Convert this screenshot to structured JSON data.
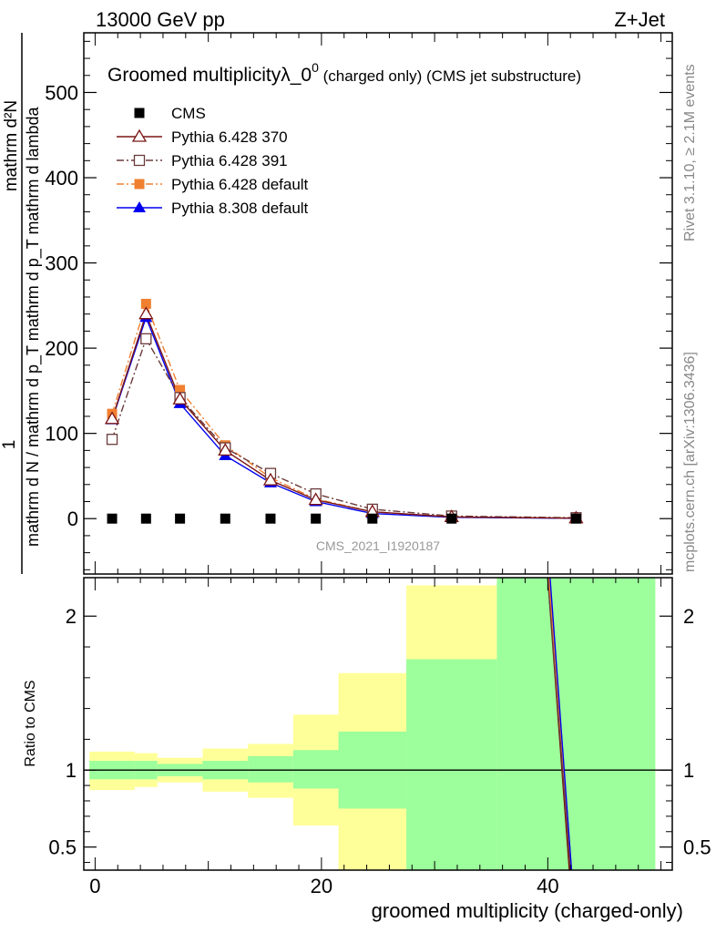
{
  "header": {
    "energy": "13000 GeV pp",
    "process": "Z+Jet"
  },
  "side_labels": {
    "rivet": "Rivet 3.1.10, ≥ 2.1M events",
    "mcplots": "mcplots.cern.ch [arXiv:1306.3436]"
  },
  "chart_data": [
    {
      "type": "line",
      "title_main": "Groomed multiplicityλ_0",
      "title_sup": "0",
      "title_suffix": " (charged only) (CMS jet substructure)",
      "ylabel_numerator": "mathrm d²N",
      "ylabel_denominator": "mathrm d N / mathrm d p_T mathrm d p_T mathrm d lambda",
      "ylabel_one": "1",
      "ylim": [
        -65,
        570
      ],
      "y_ticks": [
        0,
        100,
        200,
        300,
        400,
        500
      ],
      "y_tick_labels": [
        "0",
        "100",
        "200",
        "300",
        "400",
        "500"
      ],
      "reference_label": "CMS_2021_I1920187",
      "legend_position": "top-left",
      "series": [
        {
          "name": "CMS",
          "color": "#000000",
          "marker": "filled-square",
          "x": [
            1.5,
            4.5,
            7.5,
            11.5,
            15.5,
            19.5,
            24.5,
            31.5,
            42.5
          ],
          "y": [
            0,
            0,
            0,
            0,
            0,
            0,
            0,
            0,
            0
          ]
        },
        {
          "name": "Pythia 6.428 370",
          "color": "#7a1515",
          "marker": "open-triangle",
          "dash": "solid",
          "x": [
            1.5,
            4.5,
            7.5,
            11.5,
            15.5,
            19.5,
            24.5,
            31.5,
            42.5
          ],
          "y": [
            117,
            240,
            140,
            80,
            45,
            22,
            8,
            2,
            0.5
          ]
        },
        {
          "name": "Pythia 6.428 391",
          "color": "#6b3a3a",
          "marker": "open-square",
          "dash": "dashdot",
          "x": [
            1.5,
            4.5,
            7.5,
            11.5,
            15.5,
            19.5,
            24.5,
            31.5,
            42.5
          ],
          "y": [
            93,
            211,
            142,
            83,
            53,
            29,
            11,
            3,
            1
          ]
        },
        {
          "name": "Pythia 6.428 default",
          "color": "#f08030",
          "marker": "filled-square",
          "dash": "dashdot",
          "x": [
            1.5,
            4.5,
            7.5,
            11.5,
            15.5,
            19.5,
            24.5,
            31.5,
            42.5
          ],
          "y": [
            123,
            252,
            151,
            86,
            48,
            23,
            8,
            2,
            0.5
          ]
        },
        {
          "name": "Pythia 8.308 default",
          "color": "#0000ee",
          "marker": "filled-triangle",
          "dash": "solid",
          "x": [
            1.5,
            4.5,
            7.5,
            11.5,
            15.5,
            19.5,
            24.5,
            31.5,
            42.5
          ],
          "y": [
            116,
            236,
            135,
            74,
            42,
            20,
            6,
            1.5,
            0.3
          ]
        }
      ]
    },
    {
      "type": "area",
      "ylabel": "Ratio to CMS",
      "xlabel": "groomed multiplicity (charged-only)",
      "xlim": [
        -1,
        51
      ],
      "ylim": [
        0.35,
        2.25
      ],
      "x_ticks": [
        0,
        20,
        40
      ],
      "x_tick_labels": [
        "0",
        "20",
        "40"
      ],
      "y_ticks": [
        0.5,
        1,
        2
      ],
      "y_tick_labels": [
        "0.5",
        "1",
        "2"
      ],
      "reference_value": 1,
      "band_colors": {
        "inner": "#9cff9c",
        "outer": "#ffff99"
      },
      "bins": [
        {
          "x0": -0.5,
          "x1": 3.5,
          "inner": [
            0.94,
            1.06
          ],
          "outer": [
            0.87,
            1.12
          ]
        },
        {
          "x0": 3.5,
          "x1": 5.5,
          "inner": [
            0.94,
            1.06
          ],
          "outer": [
            0.89,
            1.11
          ]
        },
        {
          "x0": 5.5,
          "x1": 9.5,
          "inner": [
            0.96,
            1.04
          ],
          "outer": [
            0.92,
            1.08
          ]
        },
        {
          "x0": 9.5,
          "x1": 13.5,
          "inner": [
            0.94,
            1.06
          ],
          "outer": [
            0.86,
            1.14
          ]
        },
        {
          "x0": 13.5,
          "x1": 17.5,
          "inner": [
            0.92,
            1.09
          ],
          "outer": [
            0.82,
            1.17
          ]
        },
        {
          "x0": 17.5,
          "x1": 21.5,
          "inner": [
            0.88,
            1.13
          ],
          "outer": [
            0.64,
            1.36
          ]
        },
        {
          "x0": 21.5,
          "x1": 27.5,
          "inner": [
            0.75,
            1.25
          ],
          "outer": [
            0.35,
            1.63
          ]
        },
        {
          "x0": 27.5,
          "x1": 35.5,
          "inner": [
            0.35,
            1.72
          ],
          "outer": [
            0.35,
            2.2
          ]
        },
        {
          "x0": 35.5,
          "x1": 49.5,
          "inner": [
            0.35,
            2.25
          ],
          "outer": [
            0.35,
            2.25
          ]
        }
      ],
      "ratio_lines": [
        {
          "name": "Pythia 6.428 370",
          "color": "#7a1515",
          "points": [
            [
              40.0,
              2.25
            ],
            [
              41.9,
              0.35
            ]
          ]
        },
        {
          "name": "Pythia 6.428 391",
          "color": "#6b3a3a",
          "points": [
            [
              40.0,
              2.25
            ],
            [
              42.0,
              0.35
            ]
          ]
        },
        {
          "name": "Pythia 6.428 default",
          "color": "#f08030",
          "points": [
            [
              40.1,
              2.25
            ],
            [
              42.1,
              0.35
            ]
          ]
        },
        {
          "name": "Pythia 8.308 default",
          "color": "#0000ee",
          "points": [
            [
              40.2,
              2.25
            ],
            [
              42.1,
              0.35
            ]
          ]
        }
      ]
    }
  ]
}
